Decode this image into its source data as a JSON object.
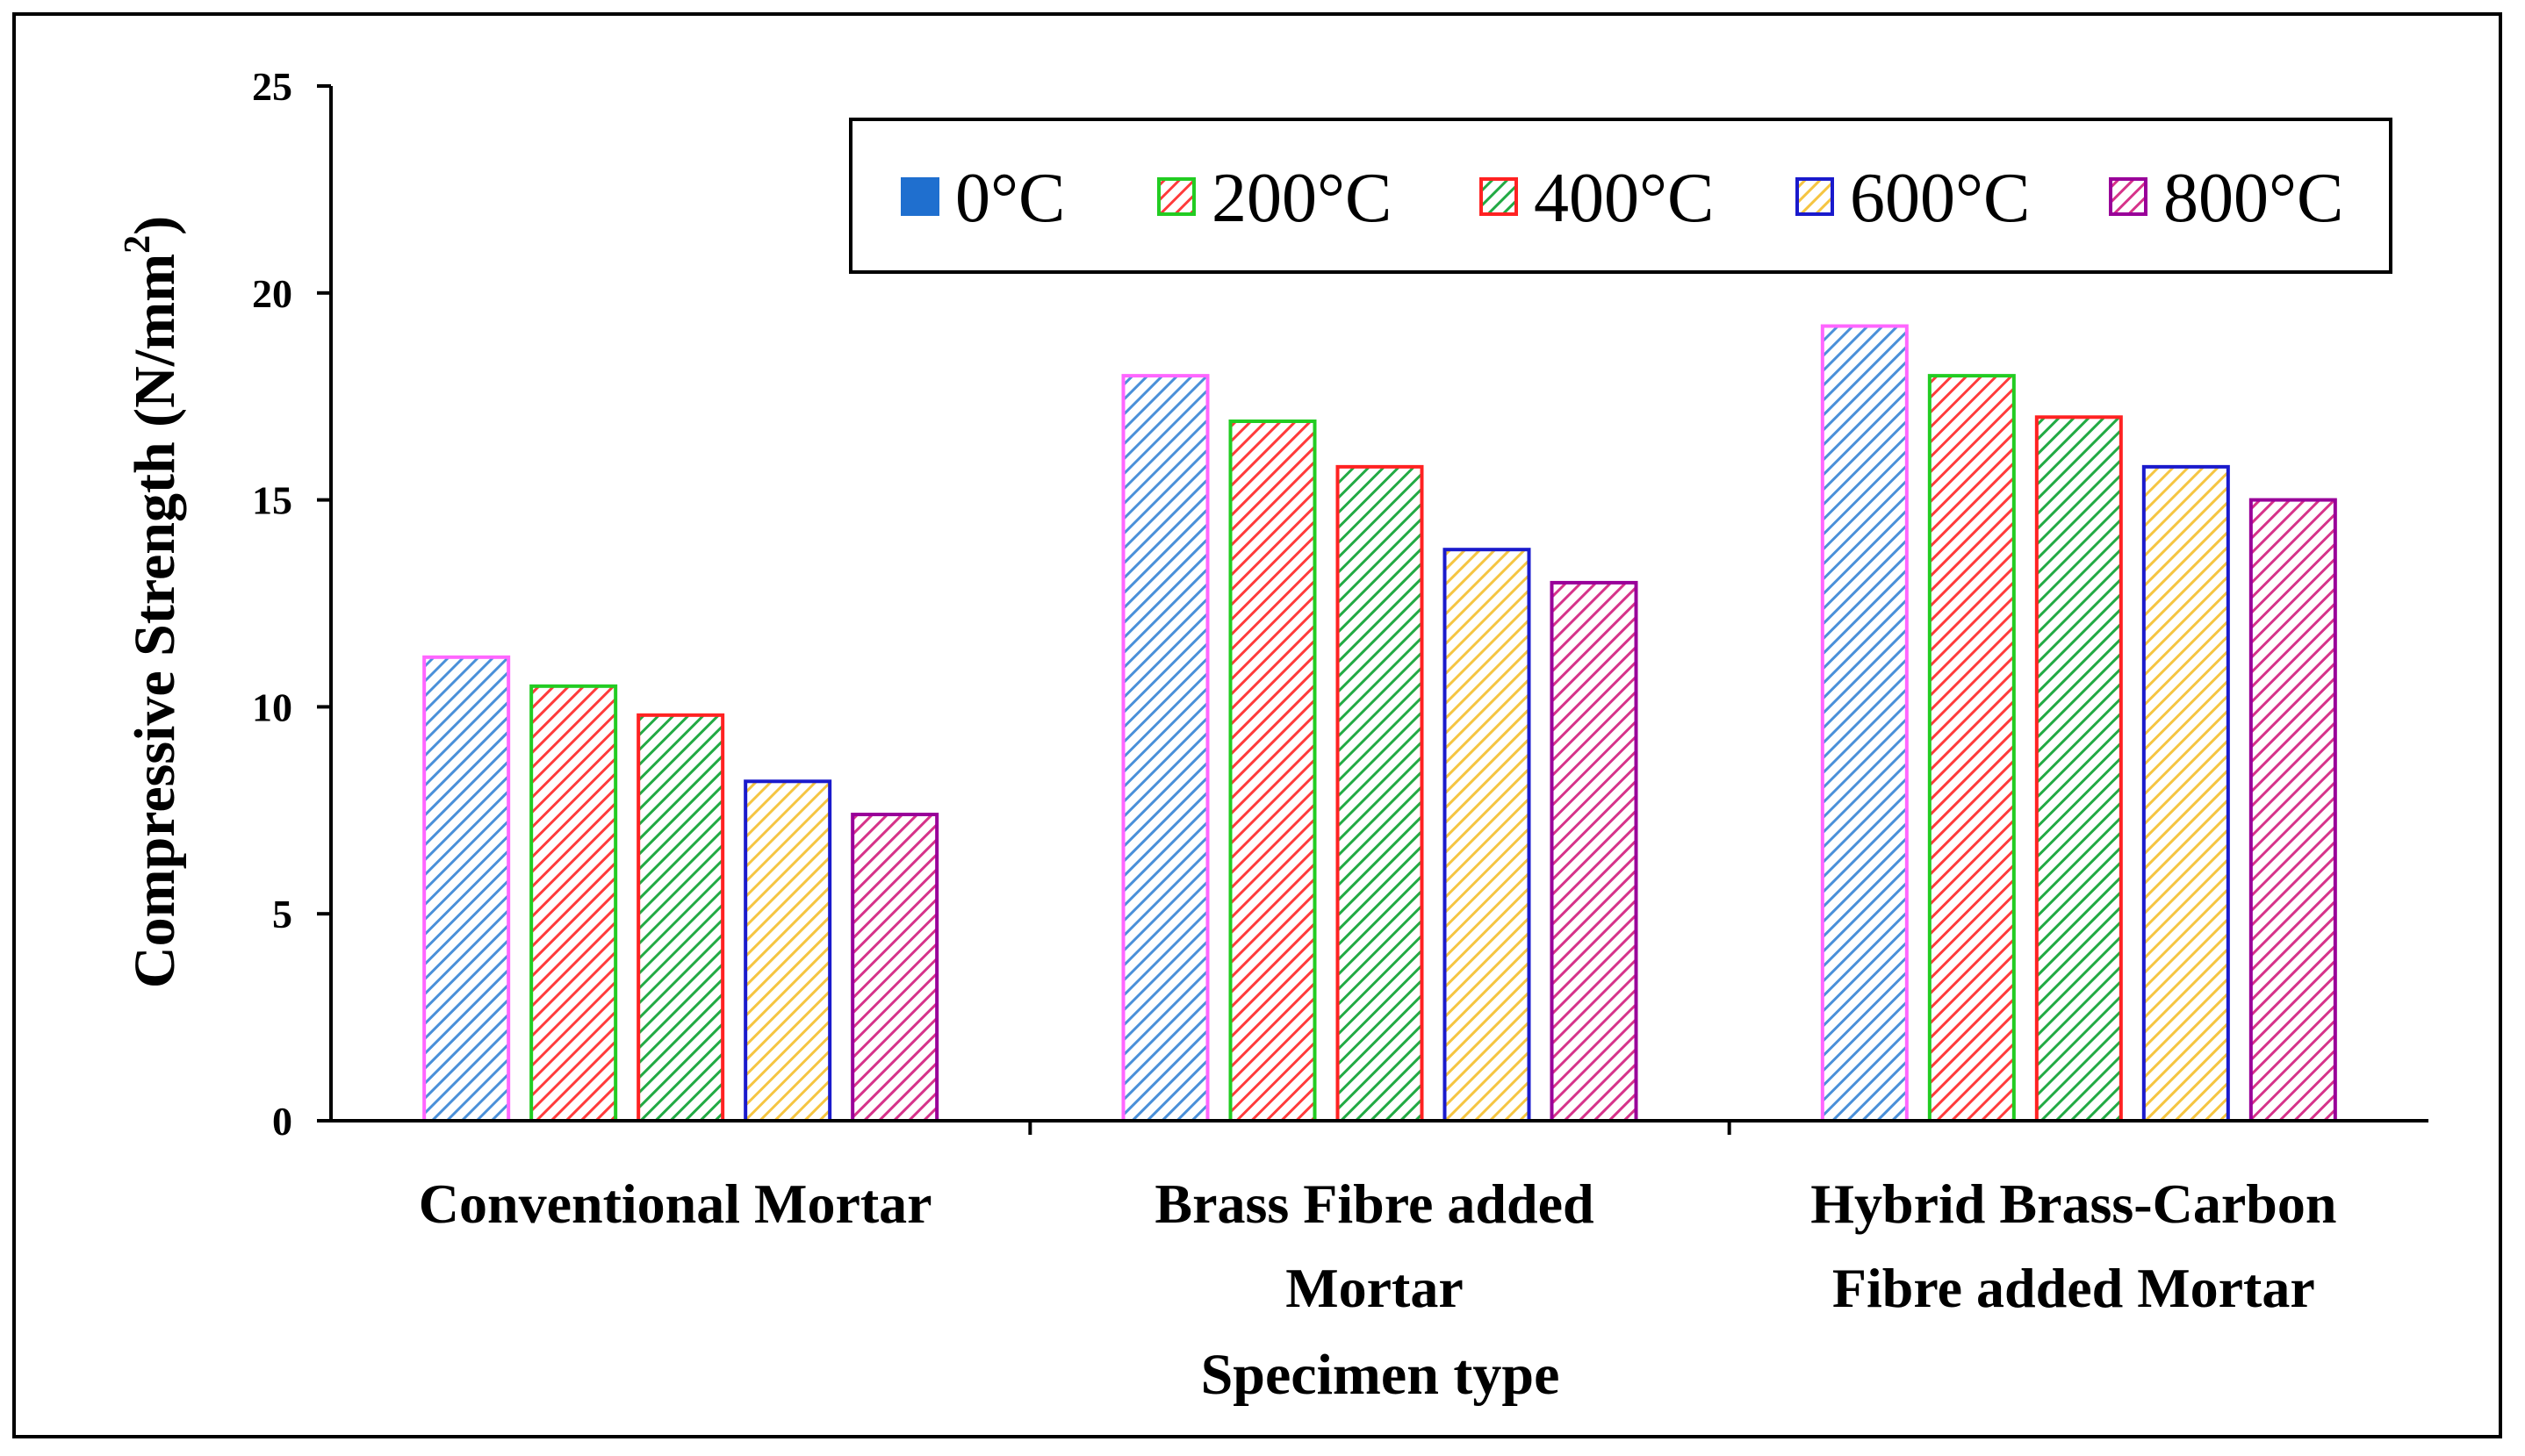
{
  "chart_data": {
    "type": "bar",
    "title": "",
    "xlabel": "Specimen type",
    "ylabel": "Compressive Strength (N/mm",
    "ylabel_sup": "2",
    "ylabel_close": ")",
    "ylim": [
      0,
      25
    ],
    "yticks": [
      0,
      5,
      10,
      15,
      20,
      25
    ],
    "grid": false,
    "legend_position": "top-right",
    "categories": [
      [
        "Conventional Mortar"
      ],
      [
        "Brass Fibre added",
        "Mortar"
      ],
      [
        "Hybrid Brass-Carbon",
        "Fibre added Mortar"
      ]
    ],
    "series": [
      {
        "name": "0°C",
        "values": [
          11.2,
          18.0,
          19.2
        ],
        "hatch": "#4a90d9",
        "border": "#ff66ff"
      },
      {
        "name": "200°C",
        "values": [
          10.5,
          16.9,
          18.0
        ],
        "hatch": "#ff3b3b",
        "border": "#22cc22"
      },
      {
        "name": "400°C",
        "values": [
          9.8,
          15.8,
          17.0
        ],
        "hatch": "#22aa44",
        "border": "#ff2222"
      },
      {
        "name": "600°C",
        "values": [
          8.2,
          13.8,
          15.8
        ],
        "hatch": "#f5c542",
        "border": "#1a1acc"
      },
      {
        "name": "800°C",
        "values": [
          7.4,
          13.0,
          15.0
        ],
        "hatch": "#d6338a",
        "border": "#990099"
      }
    ],
    "legend_swatches": [
      {
        "fill": "#1f6fcf",
        "border": "#1f6fcf",
        "hatched": false
      },
      {
        "fill": "#ff3b3b",
        "border": "#22cc22",
        "hatched": true
      },
      {
        "fill": "#22aa44",
        "border": "#ff2222",
        "hatched": true
      },
      {
        "fill": "#f5c542",
        "border": "#1a1acc",
        "hatched": true
      },
      {
        "fill": "#d6338a",
        "border": "#990099",
        "hatched": true
      }
    ]
  }
}
